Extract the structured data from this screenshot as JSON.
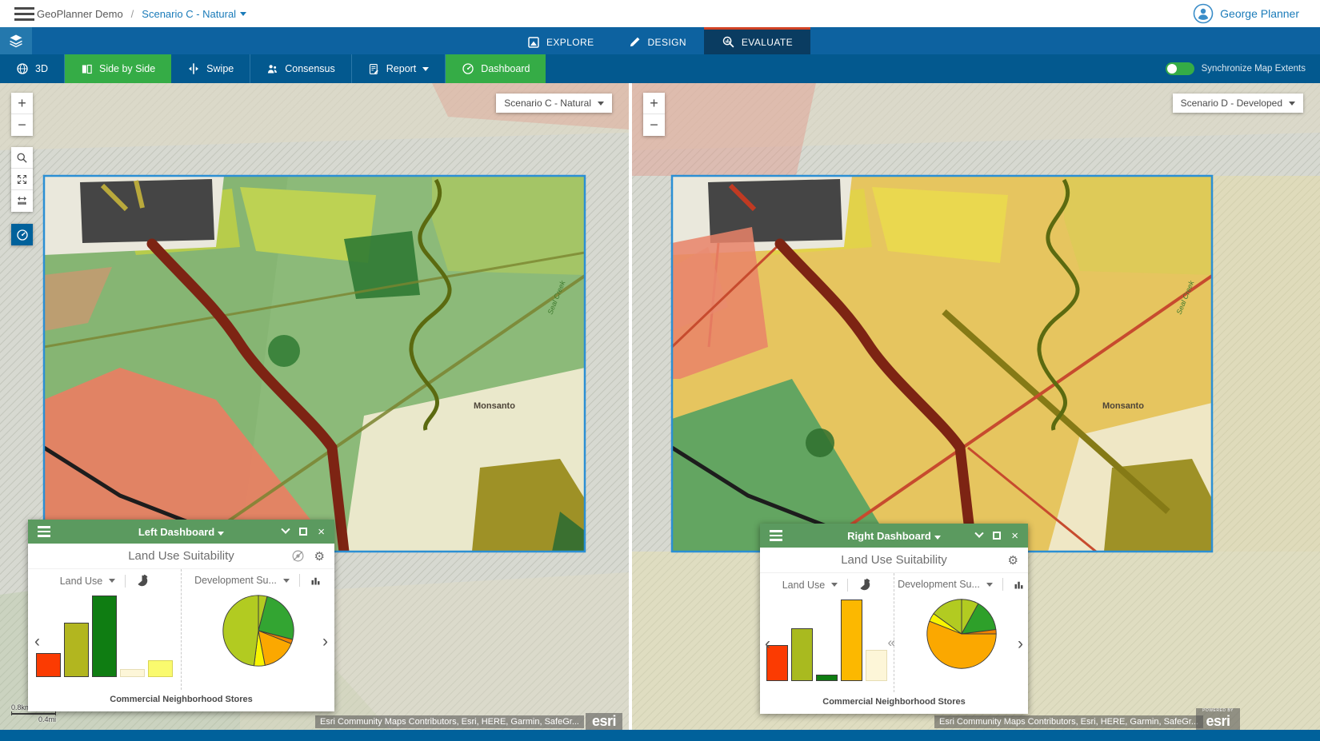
{
  "header": {
    "app_title": "GeoPlanner Demo",
    "separator": "/",
    "scenario_link": "Scenario C - Natural",
    "user_name": "George Planner"
  },
  "nav": {
    "tabs": [
      {
        "label": "EXPLORE"
      },
      {
        "label": "DESIGN"
      },
      {
        "label": "EVALUATE",
        "active": true
      }
    ]
  },
  "toolbar": {
    "btn_3d": "3D",
    "btn_side_by_side": "Side by Side",
    "btn_swipe": "Swipe",
    "btn_consensus": "Consensus",
    "btn_report": "Report",
    "btn_dashboard": "Dashboard",
    "sync_label": "Synchronize Map Extents",
    "sync_on": true
  },
  "maps": {
    "left": {
      "selector": "Scenario C - Natural",
      "place_label": "Monsanto",
      "creek_label": "Seal Creek",
      "attribution": "Esri Community Maps Contributors, Esri, HERE, Garmin, SafeGr...",
      "logo": "esri",
      "scale_km": "0.8km",
      "scale_mi": "0.4mi"
    },
    "right": {
      "selector": "Scenario D - Developed",
      "place_label": "Monsanto",
      "creek_label": "Seal Creek",
      "attribution": "Esri Community Maps Contributors, Esri, HERE, Garmin, SafeGr...",
      "logo": "esri",
      "powered_by": "POWERED BY"
    }
  },
  "dashboards": {
    "left": {
      "title": "Left Dashboard",
      "panel_title": "Land Use Suitability",
      "chart1_label": "Land Use",
      "chart2_label": "Development Su...",
      "caption": "Commercial Neighborhood Stores"
    },
    "right": {
      "title": "Right Dashboard",
      "panel_title": "Land Use Suitability",
      "chart1_label": "Land Use",
      "chart2_label": "Development Su...",
      "caption": "Commercial Neighborhood Stores"
    }
  },
  "icons": {
    "prev": "‹",
    "next": "›",
    "collapse": "«",
    "gear": "⚙",
    "close": "×",
    "zoom_in": "+",
    "zoom_out": "−"
  },
  "colors": {
    "nav_blue": "#0d62a0",
    "toolbar_blue": "#03598f",
    "active_tab": "#0a3c61",
    "tab_accent_red": "#d14224",
    "button_green": "#35ac46",
    "dashboard_green": "#5b9a5f",
    "link_blue": "#1a7bb9",
    "extent_border": "#2b8fd4"
  },
  "chart_data": [
    {
      "type": "bar",
      "dashboard": "Left Dashboard",
      "indicator": "Land Use",
      "scenario": "Scenario C - Natural",
      "area": "Commercial Neighborhood Stores",
      "note": "values are relative bar heights (percent of tallest), no axis labels shown",
      "values": [
        27,
        62,
        92,
        9,
        19
      ],
      "colors": [
        "#fb3b02",
        "#b2b61f",
        "#0f7d12",
        "#fdf6d8",
        "#fafa6e"
      ],
      "border_colors": [
        "#3c3c3c",
        "#3c3c3c",
        "#3c3c3c",
        "#e6ddb4",
        "#d9d455"
      ]
    },
    {
      "type": "pie",
      "dashboard": "Left Dashboard",
      "indicator": "Development Su...",
      "scenario": "Scenario C - Natural",
      "area": "Commercial Neighborhood Stores",
      "note": "slices clockwise from 12 o'clock, percent of whole",
      "slices": [
        {
          "value": 4,
          "color": "#b2cb21"
        },
        {
          "value": 25,
          "color": "#33a532"
        },
        {
          "value": 2,
          "color": "#ef8200"
        },
        {
          "value": 16,
          "color": "#fba800"
        },
        {
          "value": 5,
          "color": "#f8f400"
        },
        {
          "value": 48,
          "color": "#b2cb21"
        }
      ]
    },
    {
      "type": "bar",
      "dashboard": "Right Dashboard",
      "indicator": "Land Use",
      "scenario": "Scenario D - Developed",
      "area": "Commercial Neighborhood Stores",
      "note": "values are relative bar heights (percent of tallest), no axis labels shown",
      "values": [
        39,
        57,
        7,
        88,
        33
      ],
      "colors": [
        "#fb3b02",
        "#a9ba1f",
        "#0f7d12",
        "#fcb800",
        "#fdf6d8"
      ],
      "border_colors": [
        "#3c3c3c",
        "#3c3c3c",
        "#3c3c3c",
        "#3c3c3c",
        "#e6ddb4"
      ]
    },
    {
      "type": "pie",
      "dashboard": "Right Dashboard",
      "indicator": "Development Su...",
      "scenario": "Scenario D - Developed",
      "area": "Commercial Neighborhood Stores",
      "note": "slices clockwise from 12 o'clock, percent of whole",
      "slices": [
        {
          "value": 8,
          "color": "#b2cb21"
        },
        {
          "value": 15,
          "color": "#2ea02a"
        },
        {
          "value": 2,
          "color": "#ef8200"
        },
        {
          "value": 56,
          "color": "#fba800"
        },
        {
          "value": 4,
          "color": "#f8f400"
        },
        {
          "value": 15,
          "color": "#b2cb21"
        }
      ]
    }
  ]
}
